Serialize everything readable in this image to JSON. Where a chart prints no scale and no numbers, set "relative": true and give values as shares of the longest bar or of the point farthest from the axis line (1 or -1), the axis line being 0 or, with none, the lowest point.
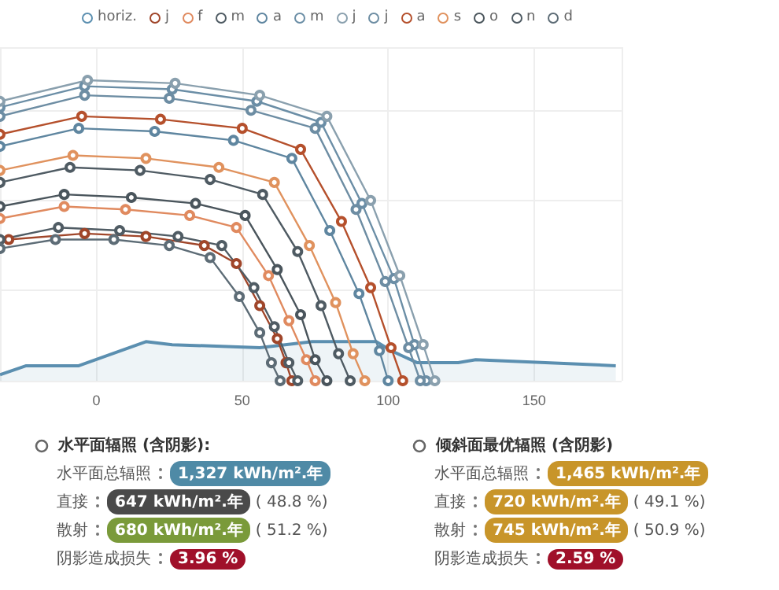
{
  "chart_data": [
    {
      "type": "line",
      "relative": true,
      "xlim": [
        -33,
        180
      ],
      "xticks": [
        0,
        50,
        100,
        150
      ],
      "grid": true,
      "legend": "top",
      "marker": "circle",
      "line_style": "solid",
      "series": [
        {
          "name": "horiz.",
          "type": "area",
          "marker": "none",
          "color": "#5b8fb0",
          "x": [
            -33,
            -24,
            -6,
            17,
            26,
            56,
            74,
            96,
            101,
            110,
            124,
            130,
            178
          ],
          "values": [
            0.02,
            0.05,
            0.05,
            0.13,
            0.12,
            0.11,
            0.13,
            0.13,
            0.1,
            0.06,
            0.06,
            0.07,
            0.05
          ]
        },
        {
          "name": "j",
          "color": "#a0462a",
          "x": [
            -30,
            -4,
            17,
            37,
            48,
            56,
            62,
            65,
            67
          ],
          "values": [
            0.47,
            0.49,
            0.48,
            0.45,
            0.39,
            0.25,
            0.14,
            0.06,
            0
          ]
        },
        {
          "name": "f",
          "color": "#e08a5f",
          "x": [
            -33,
            -11,
            10,
            32,
            48,
            59,
            66,
            72,
            75
          ],
          "values": [
            0.54,
            0.58,
            0.57,
            0.55,
            0.51,
            0.35,
            0.2,
            0.07,
            0
          ]
        },
        {
          "name": "m",
          "color": "#4f5b63",
          "x": [
            -33,
            -9,
            15,
            39,
            57,
            69,
            77,
            83,
            87
          ],
          "values": [
            0.66,
            0.71,
            0.7,
            0.67,
            0.62,
            0.43,
            0.25,
            0.09,
            0
          ]
        },
        {
          "name": "a",
          "color": "#5f86a0",
          "x": [
            -33,
            -6,
            20,
            47,
            67,
            80,
            90,
            97,
            100
          ],
          "values": [
            0.78,
            0.84,
            0.83,
            0.8,
            0.74,
            0.5,
            0.29,
            0.1,
            0
          ]
        },
        {
          "name": "m",
          "color": "#6b8ea6",
          "x": [
            -33,
            -4,
            26,
            55,
            77,
            91,
            102,
            109,
            113
          ],
          "values": [
            0.91,
            0.98,
            0.97,
            0.93,
            0.86,
            0.59,
            0.34,
            0.12,
            0
          ]
        },
        {
          "name": "j",
          "color": "#8aa0ae",
          "x": [
            -33,
            -3,
            27,
            56,
            79,
            94,
            104,
            112,
            116
          ],
          "values": [
            0.93,
            1,
            0.99,
            0.95,
            0.88,
            0.6,
            0.35,
            0.12,
            0
          ]
        },
        {
          "name": "j",
          "color": "#6d8da3",
          "x": [
            -33,
            -4,
            25,
            53,
            75,
            89,
            99,
            107,
            111
          ],
          "values": [
            0.88,
            0.95,
            0.94,
            0.9,
            0.84,
            0.57,
            0.33,
            0.11,
            0
          ]
        },
        {
          "name": "a",
          "color": "#b5502c",
          "x": [
            -33,
            -5,
            22,
            50,
            70,
            84,
            94,
            101,
            105
          ],
          "values": [
            0.82,
            0.88,
            0.87,
            0.84,
            0.77,
            0.53,
            0.31,
            0.11,
            0
          ]
        },
        {
          "name": "s",
          "color": "#e0925e",
          "x": [
            -33,
            -8,
            17,
            42,
            61,
            73,
            82,
            88,
            92
          ],
          "values": [
            0.7,
            0.75,
            0.74,
            0.71,
            0.66,
            0.45,
            0.26,
            0.09,
            0
          ]
        },
        {
          "name": "o",
          "color": "#4a555c",
          "x": [
            -33,
            -11,
            12,
            34,
            51,
            62,
            70,
            75,
            79
          ],
          "values": [
            0.58,
            0.62,
            0.61,
            0.59,
            0.55,
            0.37,
            0.22,
            0.07,
            0
          ]
        },
        {
          "name": "n",
          "color": "#505c64",
          "x": [
            -33,
            -13,
            8,
            28,
            43,
            54,
            61,
            66,
            69
          ],
          "values": [
            0.47,
            0.51,
            0.5,
            0.48,
            0.45,
            0.31,
            0.18,
            0.06,
            0
          ]
        },
        {
          "name": "d",
          "color": "#5d6c76",
          "x": [
            -33,
            -14,
            6,
            25,
            39,
            49,
            56,
            60,
            63
          ],
          "values": [
            0.44,
            0.47,
            0.47,
            0.45,
            0.41,
            0.28,
            0.16,
            0.06,
            0
          ]
        }
      ]
    },
    {
      "type": "other",
      "title": "水平面辐照 (含阴影):",
      "categories": [
        "水平面总辐照",
        "直接",
        "散射",
        "阴影造成损失"
      ],
      "value_labels": [
        "1,327 kWh/m².年",
        "647 kWh/m².年",
        "680 kWh/m².年",
        "3.96 %"
      ],
      "colors": [
        "#4f8aa6",
        "#4a4a4a",
        "#7a9a3a",
        "#a0102a"
      ],
      "annotations": [
        null,
        "( 48.8 %)",
        "( 51.2 %)",
        null
      ]
    },
    {
      "type": "other",
      "title": "倾斜面最优辐照 (含阴影)",
      "categories": [
        "水平面总辐照",
        "直接",
        "散射",
        "阴影造成损失"
      ],
      "value_labels": [
        "1,465 kWh/m².年",
        "720 kWh/m².年",
        "745 kWh/m².年",
        "2.59 %"
      ],
      "colors": [
        "#c8952a",
        "#c8952a",
        "#c8952a",
        "#a0102a"
      ],
      "annotations": [
        null,
        "( 49.1 %)",
        "( 50.9 %)",
        null
      ]
    }
  ]
}
